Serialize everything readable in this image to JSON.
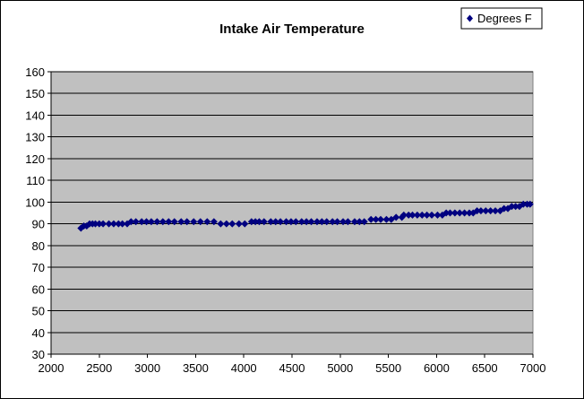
{
  "colors": {
    "plot_bg": "#c0c0c0",
    "marker": "#000080",
    "grid": "#000000",
    "frame": "#000000"
  },
  "chart_data": {
    "type": "scatter",
    "title": "Intake Air Temperature",
    "xlabel": "",
    "ylabel": "",
    "xlim": [
      2000,
      7000
    ],
    "ylim": [
      30,
      160
    ],
    "x_ticks": [
      "2000",
      "2500",
      "3000",
      "3500",
      "4000",
      "4500",
      "5000",
      "5500",
      "6000",
      "6500",
      "7000"
    ],
    "y_ticks": [
      "30",
      "40",
      "50",
      "60",
      "70",
      "80",
      "90",
      "100",
      "110",
      "120",
      "130",
      "140",
      "150",
      "160"
    ],
    "grid": "horizontal major gridlines",
    "legend": {
      "position": "top-right",
      "entries": [
        "Degrees F"
      ]
    },
    "marker": "diamond",
    "series": [
      {
        "name": "Degrees F",
        "x": [
          2310,
          2340,
          2370,
          2400,
          2430,
          2460,
          2500,
          2540,
          2600,
          2650,
          2700,
          2740,
          2790,
          2830,
          2880,
          2940,
          2990,
          3040,
          3100,
          3160,
          3220,
          3280,
          3350,
          3410,
          3480,
          3550,
          3620,
          3690,
          3760,
          3820,
          3880,
          3950,
          4010,
          4080,
          4120,
          4160,
          4210,
          4280,
          4330,
          4380,
          4440,
          4490,
          4540,
          4600,
          4650,
          4700,
          4760,
          4810,
          4860,
          4920,
          4970,
          5030,
          5080,
          5150,
          5200,
          5250,
          5320,
          5370,
          5420,
          5480,
          5530,
          5580,
          5640,
          5660,
          5710,
          5750,
          5800,
          5850,
          5900,
          5950,
          6010,
          6060,
          6100,
          6140,
          6190,
          6240,
          6290,
          6340,
          6380,
          6420,
          6460,
          6510,
          6560,
          6610,
          6660,
          6700,
          6740,
          6780,
          6820,
          6860,
          6900,
          6940,
          6970
        ],
        "y": [
          88,
          89,
          89,
          90,
          90,
          90,
          90,
          90,
          90,
          90,
          90,
          90,
          90,
          91,
          91,
          91,
          91,
          91,
          91,
          91,
          91,
          91,
          91,
          91,
          91,
          91,
          91,
          91,
          90,
          90,
          90,
          90,
          90,
          91,
          91,
          91,
          91,
          91,
          91,
          91,
          91,
          91,
          91,
          91,
          91,
          91,
          91,
          91,
          91,
          91,
          91,
          91,
          91,
          91,
          91,
          91,
          92,
          92,
          92,
          92,
          92,
          93,
          93,
          94,
          94,
          94,
          94,
          94,
          94,
          94,
          94,
          94,
          95,
          95,
          95,
          95,
          95,
          95,
          95,
          96,
          96,
          96,
          96,
          96,
          96,
          97,
          97,
          98,
          98,
          98,
          99,
          99,
          99
        ]
      }
    ]
  }
}
